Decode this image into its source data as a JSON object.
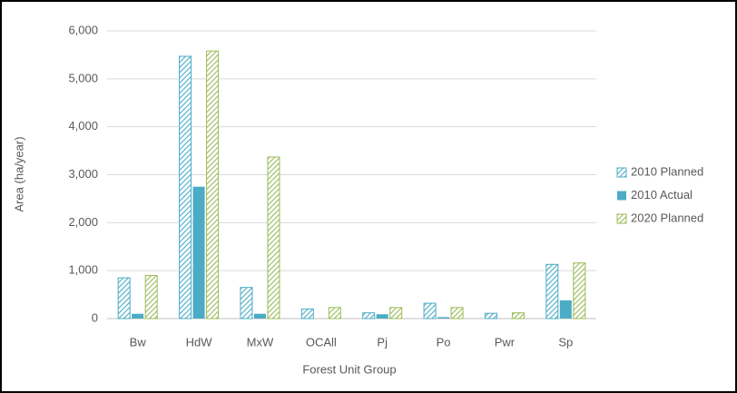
{
  "chart_data": {
    "type": "bar",
    "x_label": "Forest Unit Group",
    "y_label": "Area (ha/year)",
    "categories": [
      "Bw",
      "HdW",
      "MxW",
      "OCAll",
      "Pj",
      "Po",
      "Pwr",
      "Sp"
    ],
    "series": [
      {
        "name": "2010 Planned",
        "color": "#4bacc6",
        "pattern": "hatch",
        "values": [
          850,
          5470,
          650,
          200,
          120,
          320,
          110,
          1130
        ]
      },
      {
        "name": "2010 Actual",
        "color": "#4bacc6",
        "pattern": "solid",
        "values": [
          100,
          2750,
          100,
          0,
          90,
          30,
          0,
          380
        ]
      },
      {
        "name": "2020 Planned",
        "color": "#9bbb59",
        "pattern": "hatch",
        "values": [
          900,
          5580,
          3370,
          230,
          230,
          230,
          120,
          1160
        ]
      }
    ],
    "ylim": [
      0,
      6000
    ],
    "yticks": [
      0,
      {
        "value": 1000,
        "label": "1,000"
      },
      {
        "value": 2000,
        "label": "2,000"
      },
      {
        "value": 3000,
        "label": "3,000"
      },
      {
        "value": 4000,
        "label": "4,000"
      },
      {
        "value": 5000,
        "label": "5,000"
      },
      {
        "value": 6000,
        "label": "6,000"
      }
    ],
    "grid": true,
    "legend": "right"
  }
}
